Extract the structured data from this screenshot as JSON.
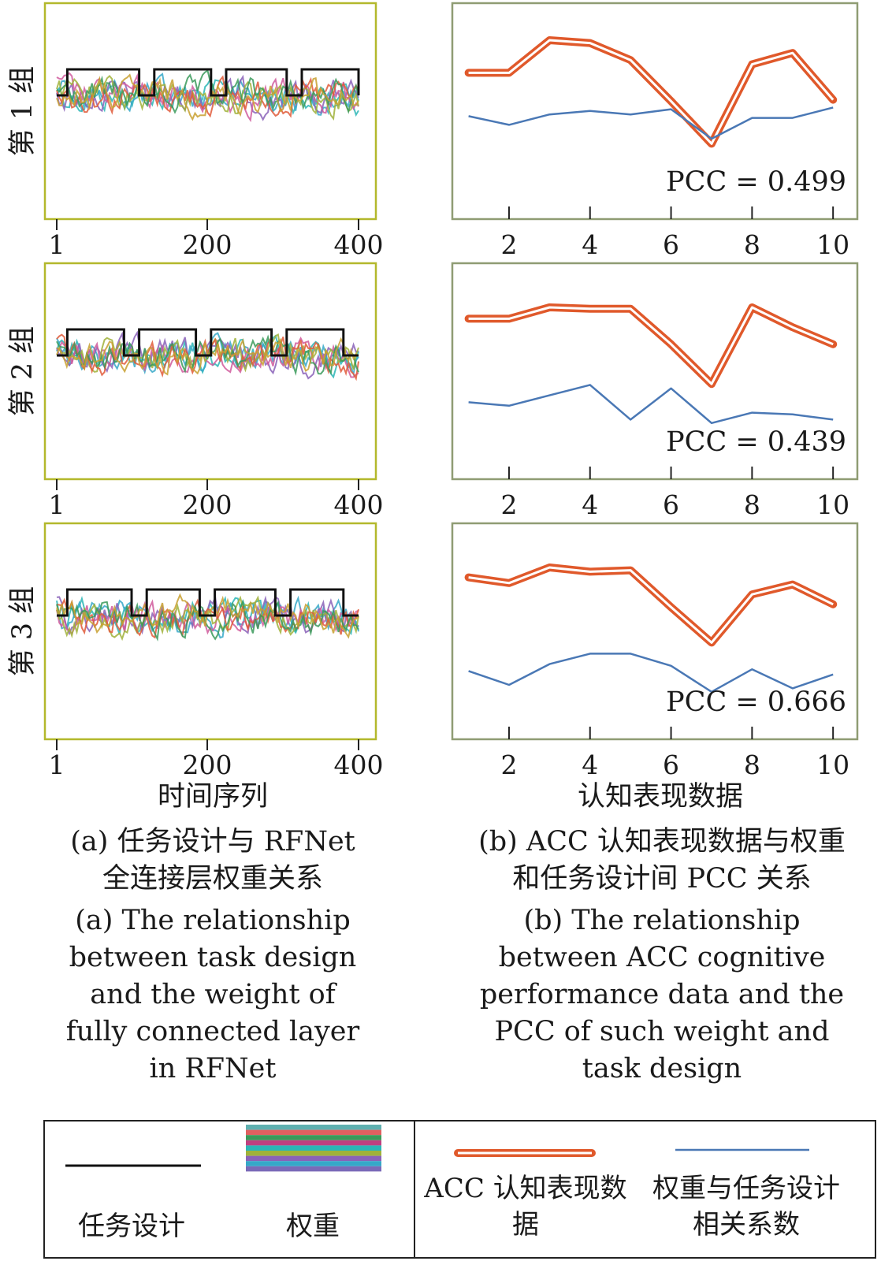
{
  "chart_data": {
    "type": "line",
    "panels": [
      {
        "group_label": "第 1 组",
        "left": {
          "x_ticks": [
            "1",
            "200",
            "400"
          ],
          "xlim": [
            1,
            400
          ],
          "task_design_x": [
            1,
            15,
            15,
            110,
            110,
            130,
            130,
            205,
            205,
            225,
            225,
            305,
            305,
            325,
            325,
            400,
            400,
            420
          ],
          "task_design_level": [
            0,
            0,
            1,
            1,
            0,
            0,
            1,
            1,
            0,
            0,
            1,
            1,
            0,
            0,
            1,
            1,
            0,
            0
          ]
        },
        "right": {
          "x_ticks": [
            "2",
            "4",
            "6",
            "8",
            "10"
          ],
          "xlim": [
            0.6,
            10.6
          ],
          "x": [
            1,
            2,
            3,
            4,
            5,
            6,
            7,
            8,
            9,
            10
          ],
          "acc": [
            0.62,
            0.62,
            0.85,
            0.83,
            0.71,
            0.42,
            0.12,
            0.68,
            0.76,
            0.43
          ],
          "weight_corr": [
            0.53,
            0.48,
            0.54,
            0.56,
            0.54,
            0.57,
            0.4,
            0.52,
            0.52,
            0.58
          ],
          "pcc_text": "PCC = 0.499"
        }
      },
      {
        "group_label": "第 2 组",
        "left": {
          "x_ticks": [
            "1",
            "200",
            "400"
          ],
          "xlim": [
            1,
            400
          ],
          "task_design_x": [
            1,
            15,
            15,
            90,
            90,
            110,
            110,
            185,
            185,
            205,
            205,
            285,
            285,
            305,
            305,
            380,
            380,
            400
          ],
          "task_design_level": [
            0,
            0,
            1,
            1,
            0,
            0,
            1,
            1,
            0,
            0,
            1,
            1,
            0,
            0,
            1,
            1,
            0,
            0
          ]
        },
        "right": {
          "x_ticks": [
            "2",
            "4",
            "6",
            "8",
            "10"
          ],
          "xlim": [
            0.6,
            10.6
          ],
          "x": [
            1,
            2,
            3,
            4,
            5,
            6,
            7,
            8,
            9,
            10
          ],
          "acc": [
            0.72,
            0.72,
            0.8,
            0.79,
            0.79,
            0.54,
            0.26,
            0.8,
            0.66,
            0.54
          ],
          "weight_corr": [
            0.38,
            0.36,
            0.42,
            0.48,
            0.28,
            0.46,
            0.26,
            0.32,
            0.31,
            0.28
          ],
          "pcc_text": "PCC = 0.439"
        }
      },
      {
        "group_label": "第 3 组",
        "left": {
          "x_ticks": [
            "1",
            "200",
            "400"
          ],
          "xlim": [
            1,
            400
          ],
          "task_design_x": [
            1,
            15,
            15,
            100,
            100,
            120,
            120,
            190,
            190,
            210,
            210,
            290,
            290,
            310,
            310,
            380,
            380,
            400
          ],
          "task_design_level": [
            0,
            0,
            1,
            1,
            0,
            0,
            1,
            1,
            0,
            0,
            1,
            1,
            0,
            0,
            1,
            1,
            0,
            0
          ]
        },
        "right": {
          "x_ticks": [
            "2",
            "4",
            "6",
            "8",
            "10"
          ],
          "xlim": [
            0.6,
            10.6
          ],
          "x": [
            1,
            2,
            3,
            4,
            5,
            6,
            7,
            8,
            9,
            10
          ],
          "acc": [
            0.73,
            0.69,
            0.8,
            0.77,
            0.78,
            0.52,
            0.27,
            0.61,
            0.68,
            0.54
          ],
          "weight_corr": [
            0.33,
            0.25,
            0.37,
            0.43,
            0.43,
            0.36,
            0.21,
            0.34,
            0.23,
            0.31
          ],
          "pcc_text": "PCC = 0.666"
        }
      }
    ],
    "x_label_left": "时间序列",
    "x_label_right": "认知表现数据",
    "colors": {
      "frame_left": "#b3b82c",
      "frame_right": "#8f9c73",
      "task_design": "#111111",
      "acc": "#e0592b",
      "weight_corr": "#4a78b5",
      "weights_palette": [
        "#2cb6b6",
        "#36a8c8",
        "#8a62b8",
        "#d05a9c",
        "#a0b23a",
        "#e05a3a",
        "#3a9a5a",
        "#c8a030"
      ]
    }
  },
  "captions": {
    "left_cn": "(a) 任务设计与 RFNet 全连接层权重关系",
    "left_en": "(a) The relationship between task design and the weight of fully connected layer in RFNet",
    "right_cn": "(b) ACC 认知表现数据与权重和任务设计间 PCC 关系",
    "right_en": "(b) The relationship between ACC cognitive performance data and the PCC of such weight and task design"
  },
  "legend": {
    "task_design": "任务设计",
    "weights": "权重",
    "acc": "ACC 认知表现数据",
    "weight_corr": "权重与任务设计相关系数"
  }
}
